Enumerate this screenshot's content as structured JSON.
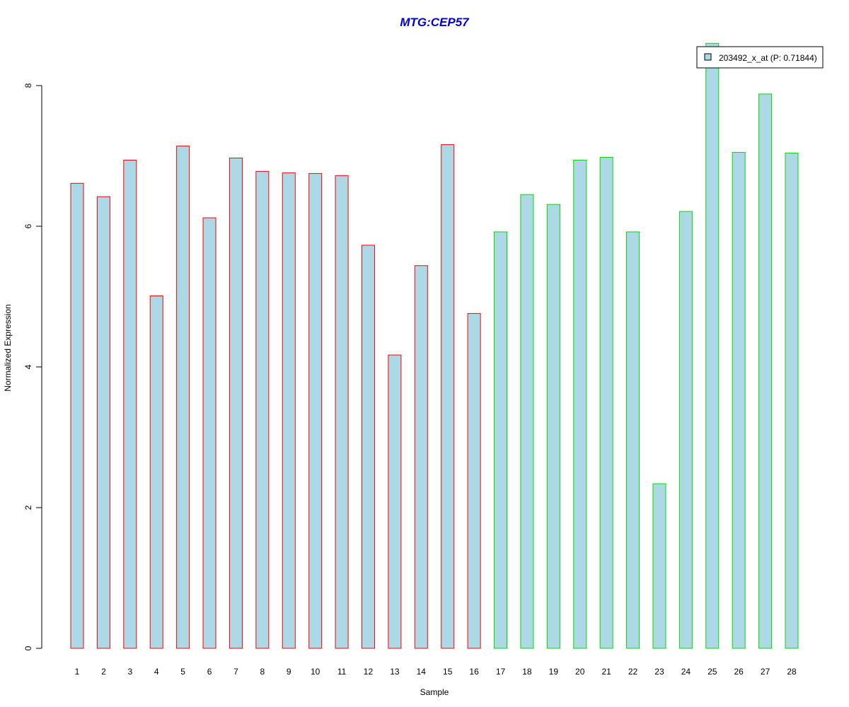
{
  "chart_data": {
    "type": "bar",
    "title": "MTG:CEP57",
    "title_color": "#0000cc",
    "xlabel": "Sample",
    "ylabel": "Normalized Expression",
    "ylim": [
      0,
      8.6
    ],
    "yticks": [
      0,
      2,
      4,
      6,
      8
    ],
    "grid": false,
    "legend_position": "top-right",
    "bar_fill": "#add8e6",
    "categories": [
      "1",
      "2",
      "3",
      "4",
      "5",
      "6",
      "7",
      "8",
      "9",
      "10",
      "11",
      "12",
      "13",
      "14",
      "15",
      "16",
      "17",
      "18",
      "19",
      "20",
      "21",
      "22",
      "23",
      "24",
      "25",
      "26",
      "27",
      "28"
    ],
    "series": [
      {
        "name": "203492_x_at (P: 0.71844)",
        "values": [
          6.61,
          6.42,
          6.94,
          5.01,
          7.14,
          6.12,
          6.97,
          6.78,
          6.76,
          6.75,
          6.72,
          5.73,
          4.17,
          5.44,
          7.16,
          4.76,
          5.92,
          6.45,
          6.31,
          6.94,
          6.98,
          5.92,
          2.34,
          6.21,
          8.6,
          7.05,
          7.88,
          7.04
        ]
      }
    ],
    "groups": [
      {
        "border_color": "#ff0000",
        "count": 16
      },
      {
        "border_color": "#00dd00",
        "count": 12
      }
    ]
  }
}
